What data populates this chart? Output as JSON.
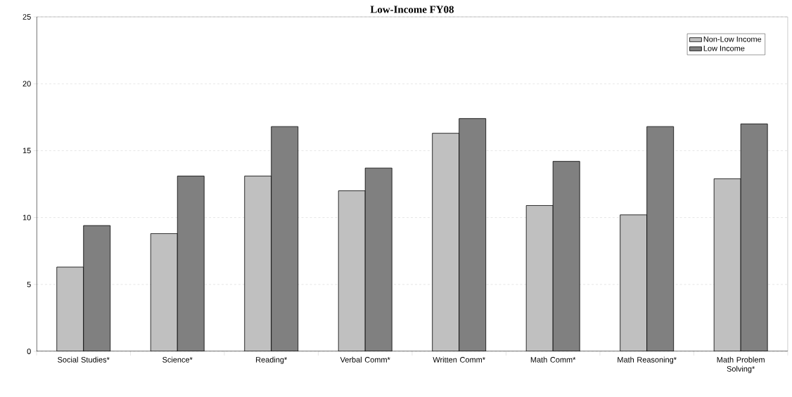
{
  "chart_data": {
    "type": "bar",
    "title": "Low-Income FY08",
    "categories": [
      "Social Studies*",
      "Science*",
      "Reading*",
      "Verbal Comm*",
      "Written Comm*",
      "Math Comm*",
      "Math Reasoning*",
      "Math Problem Solving*"
    ],
    "series": [
      {
        "name": "Non-Low Income",
        "color": "#c0c0c0",
        "values": [
          6.3,
          8.8,
          13.1,
          12.0,
          16.3,
          10.9,
          10.2,
          12.9
        ]
      },
      {
        "name": "Low Income",
        "color": "#808080",
        "values": [
          9.4,
          13.1,
          16.8,
          13.7,
          17.4,
          14.2,
          16.8,
          17.0
        ]
      }
    ],
    "ylim": [
      0,
      25
    ],
    "yticks": [
      0,
      5,
      10,
      15,
      20,
      25
    ],
    "grid": "y",
    "legend": "top right"
  }
}
